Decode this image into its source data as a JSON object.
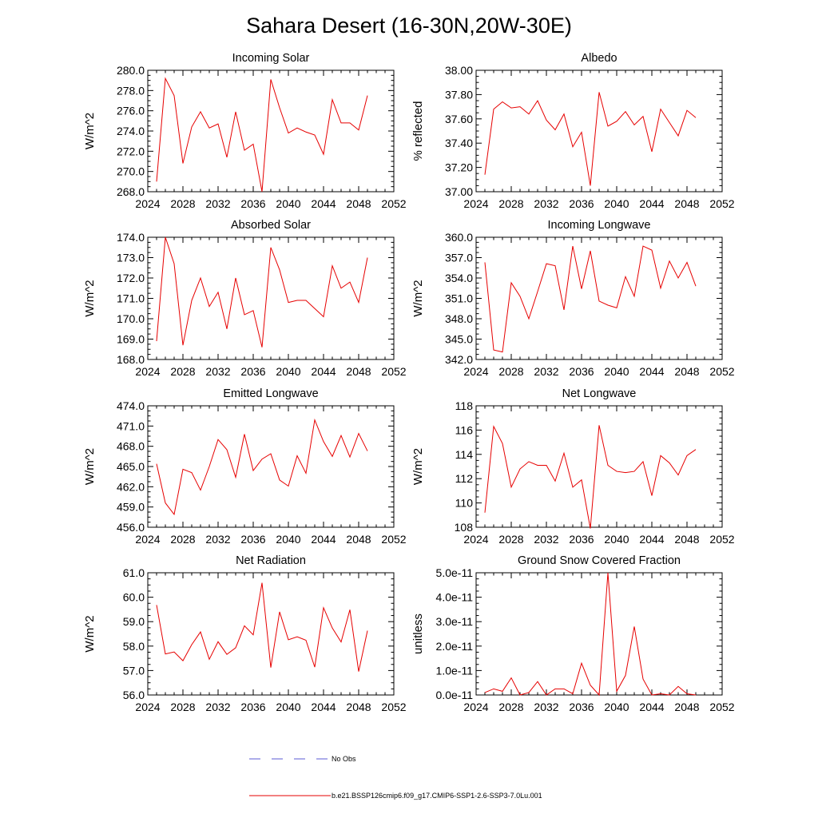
{
  "figure_title": "Sahara Desert (16-30N,20W-30E)",
  "legend": [
    {
      "label": "No Obs",
      "color": "#5b5bd6",
      "style": "dashed"
    },
    {
      "label": "b.e21.BSSP126cmip6.f09_g17.CMIP6-SSP1-2.6-SSP3-7.0Lu.001",
      "color": "#e60000",
      "style": "solid"
    }
  ],
  "colors": {
    "series": "#e60000",
    "axis": "#000000",
    "no_obs": "#5b5bd6"
  },
  "chart_data": [
    {
      "type": "line",
      "title": "Incoming Solar",
      "xlabel": "",
      "ylabel": "W/m^2",
      "xlim": [
        2024,
        2052
      ],
      "ylim": [
        268.0,
        280.0
      ],
      "x_ticks": [
        "2024",
        "2028",
        "2032",
        "2036",
        "2040",
        "2044",
        "2048",
        "2052"
      ],
      "y_ticks": [
        "268.0",
        "270.0",
        "272.0",
        "274.0",
        "276.0",
        "278.0",
        "280.0"
      ],
      "x": [
        2025,
        2026,
        2027,
        2028,
        2029,
        2030,
        2031,
        2032,
        2033,
        2034,
        2035,
        2036,
        2037,
        2038,
        2039,
        2040,
        2041,
        2042,
        2043,
        2044,
        2045,
        2046,
        2047,
        2048,
        2049
      ],
      "series": [
        {
          "values": [
            269.0,
            279.2,
            277.5,
            270.8,
            274.4,
            275.9,
            274.3,
            274.7,
            271.4,
            275.9,
            272.1,
            272.7,
            268.0,
            279.1,
            276.3,
            273.8,
            274.3,
            273.9,
            273.6,
            271.7,
            277.1,
            274.8,
            274.8,
            274.1,
            277.5
          ]
        }
      ]
    },
    {
      "type": "line",
      "title": "Albedo",
      "xlabel": "",
      "ylabel": "% reflected",
      "xlim": [
        2024,
        2052
      ],
      "ylim": [
        37.0,
        38.0
      ],
      "x_ticks": [
        "2024",
        "2028",
        "2032",
        "2036",
        "2040",
        "2044",
        "2048",
        "2052"
      ],
      "y_ticks": [
        "37.00",
        "37.20",
        "37.40",
        "37.60",
        "37.80",
        "38.00"
      ],
      "x": [
        2025,
        2026,
        2027,
        2028,
        2029,
        2030,
        2031,
        2032,
        2033,
        2034,
        2035,
        2036,
        2037,
        2038,
        2039,
        2040,
        2041,
        2042,
        2043,
        2044,
        2045,
        2046,
        2047,
        2048,
        2049
      ],
      "series": [
        {
          "values": [
            37.14,
            37.68,
            37.74,
            37.69,
            37.7,
            37.64,
            37.75,
            37.59,
            37.51,
            37.64,
            37.37,
            37.49,
            37.05,
            37.82,
            37.54,
            37.58,
            37.66,
            37.55,
            37.62,
            37.33,
            37.68,
            37.57,
            37.46,
            37.67,
            37.61
          ]
        }
      ]
    },
    {
      "type": "line",
      "title": "Absorbed Solar",
      "xlabel": "",
      "ylabel": "W/m^2",
      "xlim": [
        2024,
        2052
      ],
      "ylim": [
        168.0,
        174.0
      ],
      "x_ticks": [
        "2024",
        "2028",
        "2032",
        "2036",
        "2040",
        "2044",
        "2048",
        "2052"
      ],
      "y_ticks": [
        "168.0",
        "169.0",
        "170.0",
        "171.0",
        "172.0",
        "173.0",
        "174.0"
      ],
      "x": [
        2025,
        2026,
        2027,
        2028,
        2029,
        2030,
        2031,
        2032,
        2033,
        2034,
        2035,
        2036,
        2037,
        2038,
        2039,
        2040,
        2041,
        2042,
        2043,
        2044,
        2045,
        2046,
        2047,
        2048,
        2049
      ],
      "series": [
        {
          "values": [
            168.9,
            174.0,
            172.7,
            168.7,
            170.9,
            172.0,
            170.6,
            171.3,
            169.5,
            172.0,
            170.2,
            170.4,
            168.6,
            173.5,
            172.4,
            170.8,
            170.9,
            170.9,
            170.5,
            170.1,
            172.6,
            171.5,
            171.8,
            170.8,
            173.0
          ]
        }
      ]
    },
    {
      "type": "line",
      "title": "Incoming Longwave",
      "xlabel": "",
      "ylabel": "W/m^2",
      "xlim": [
        2024,
        2052
      ],
      "ylim": [
        342.0,
        360.0
      ],
      "x_ticks": [
        "2024",
        "2028",
        "2032",
        "2036",
        "2040",
        "2044",
        "2048",
        "2052"
      ],
      "y_ticks": [
        "342.0",
        "345.0",
        "348.0",
        "351.0",
        "354.0",
        "357.0",
        "360.0"
      ],
      "x": [
        2025,
        2026,
        2027,
        2028,
        2029,
        2030,
        2031,
        2032,
        2033,
        2034,
        2035,
        2036,
        2037,
        2038,
        2039,
        2040,
        2041,
        2042,
        2043,
        2044,
        2045,
        2046,
        2047,
        2048,
        2049
      ],
      "series": [
        {
          "values": [
            356.3,
            343.4,
            343.1,
            353.3,
            351.3,
            348.0,
            352.0,
            356.1,
            355.8,
            349.3,
            358.7,
            352.4,
            358.0,
            350.6,
            350.0,
            349.6,
            354.2,
            351.3,
            358.7,
            358.1,
            352.5,
            356.5,
            354.0,
            356.3,
            352.8
          ]
        }
      ]
    },
    {
      "type": "line",
      "title": "Emitted Longwave",
      "xlabel": "",
      "ylabel": "W/m^2",
      "xlim": [
        2024,
        2052
      ],
      "ylim": [
        456.0,
        474.0
      ],
      "x_ticks": [
        "2024",
        "2028",
        "2032",
        "2036",
        "2040",
        "2044",
        "2048",
        "2052"
      ],
      "y_ticks": [
        "456.0",
        "459.0",
        "462.0",
        "465.0",
        "468.0",
        "471.0",
        "474.0"
      ],
      "x": [
        2025,
        2026,
        2027,
        2028,
        2029,
        2030,
        2031,
        2032,
        2033,
        2034,
        2035,
        2036,
        2037,
        2038,
        2039,
        2040,
        2041,
        2042,
        2043,
        2044,
        2045,
        2046,
        2047,
        2048,
        2049
      ],
      "series": [
        {
          "values": [
            465.4,
            459.6,
            457.9,
            464.6,
            464.1,
            461.5,
            465.0,
            469.0,
            467.5,
            463.4,
            469.8,
            464.4,
            466.1,
            466.9,
            463.0,
            462.1,
            466.6,
            464.0,
            471.9,
            468.7,
            466.5,
            469.6,
            466.4,
            469.9,
            467.3
          ]
        }
      ]
    },
    {
      "type": "line",
      "title": "Net Longwave",
      "xlabel": "",
      "ylabel": "W/m^2",
      "xlim": [
        2024,
        2052
      ],
      "ylim": [
        108,
        118
      ],
      "x_ticks": [
        "2024",
        "2028",
        "2032",
        "2036",
        "2040",
        "2044",
        "2048",
        "2052"
      ],
      "y_ticks": [
        "108",
        "110",
        "112",
        "114",
        "116",
        "118"
      ],
      "x": [
        2025,
        2026,
        2027,
        2028,
        2029,
        2030,
        2031,
        2032,
        2033,
        2034,
        2035,
        2036,
        2037,
        2038,
        2039,
        2040,
        2041,
        2042,
        2043,
        2044,
        2045,
        2046,
        2047,
        2048,
        2049
      ],
      "series": [
        {
          "values": [
            109.2,
            116.3,
            114.9,
            111.3,
            112.8,
            113.4,
            113.1,
            113.1,
            111.8,
            114.1,
            111.3,
            111.9,
            107.9,
            116.4,
            113.1,
            112.6,
            112.5,
            112.6,
            113.4,
            110.6,
            113.9,
            113.3,
            112.3,
            113.9,
            114.4
          ]
        }
      ]
    },
    {
      "type": "line",
      "title": "Net Radiation",
      "xlabel": "",
      "ylabel": "W/m^2",
      "xlim": [
        2024,
        2052
      ],
      "ylim": [
        56.0,
        61.0
      ],
      "x_ticks": [
        "2024",
        "2028",
        "2032",
        "2036",
        "2040",
        "2044",
        "2048",
        "2052"
      ],
      "y_ticks": [
        "56.0",
        "57.0",
        "58.0",
        "59.0",
        "60.0",
        "61.0"
      ],
      "x": [
        2025,
        2026,
        2027,
        2028,
        2029,
        2030,
        2031,
        2032,
        2033,
        2034,
        2035,
        2036,
        2037,
        2038,
        2039,
        2040,
        2041,
        2042,
        2043,
        2044,
        2045,
        2046,
        2047,
        2048,
        2049
      ],
      "series": [
        {
          "values": [
            59.68,
            57.68,
            57.76,
            57.4,
            58.06,
            58.58,
            57.46,
            58.18,
            57.66,
            57.93,
            58.83,
            58.46,
            60.59,
            57.12,
            59.4,
            58.26,
            58.38,
            58.24,
            57.14,
            59.57,
            58.74,
            58.17,
            59.49,
            56.96,
            58.63
          ]
        }
      ]
    },
    {
      "type": "line",
      "title": "Ground Snow Covered Fraction",
      "xlabel": "",
      "ylabel": "unitless",
      "xlim": [
        2024,
        2052
      ],
      "ylim": [
        0,
        5e-11
      ],
      "x_ticks": [
        "2024",
        "2028",
        "2032",
        "2036",
        "2040",
        "2044",
        "2048",
        "2052"
      ],
      "y_ticks": [
        "0.0e-11",
        "1.0e-11",
        "2.0e-11",
        "3.0e-11",
        "4.0e-11",
        "5.0e-11"
      ],
      "x": [
        2025,
        2026,
        2027,
        2028,
        2029,
        2030,
        2031,
        2032,
        2033,
        2034,
        2035,
        2036,
        2037,
        2038,
        2039,
        2040,
        2041,
        2042,
        2043,
        2044,
        2045,
        2046,
        2047,
        2048,
        2049
      ],
      "series": [
        {
          "values": [
            1e-12,
            2.5e-12,
            1.5e-12,
            7e-12,
            0.0,
            1e-12,
            5.5e-12,
            0.0,
            2.5e-12,
            2.5e-12,
            5e-13,
            1.3e-11,
            4e-12,
            0.0,
            5e-11,
            1.5e-12,
            8e-12,
            2.8e-11,
            6.5e-12,
            0.0,
            5e-13,
            0.0,
            3.5e-12,
            5e-13,
            0.0
          ]
        }
      ]
    }
  ]
}
